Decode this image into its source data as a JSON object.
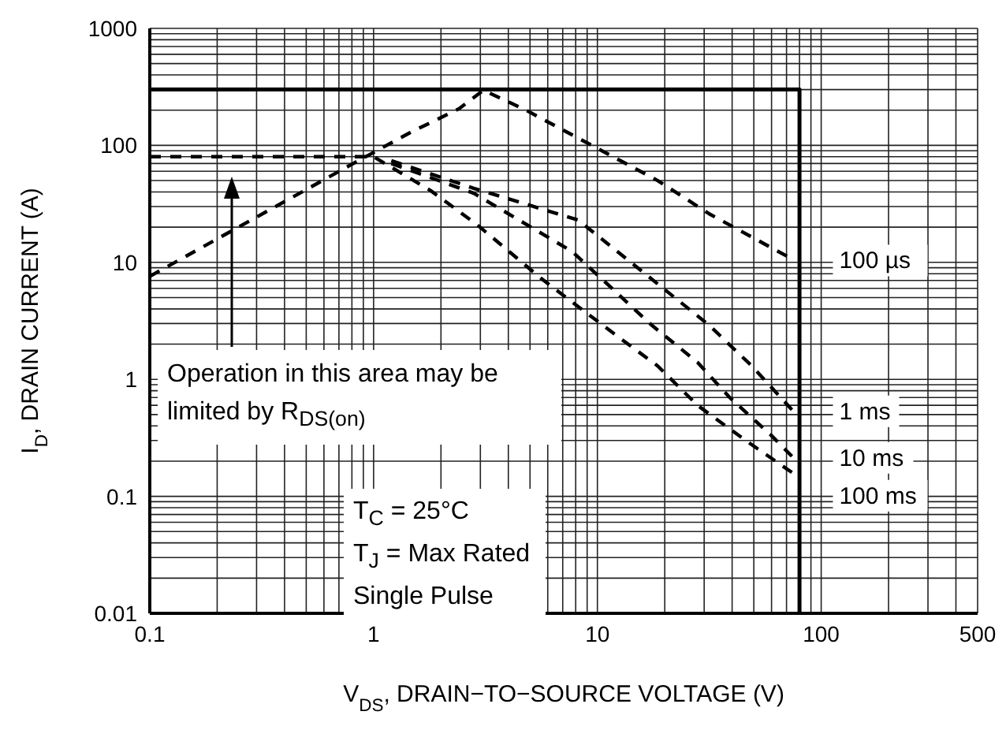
{
  "chart_data": {
    "type": "line",
    "xlabel": "V$_{DS}$, DRAIN−TO−SOURCE VOLTAGE (V)",
    "ylabel": "I$_{D}$, DRAIN CURRENT (A)",
    "log": "xy",
    "xlim": [
      0.1,
      500
    ],
    "xticks": [
      0.1,
      1,
      10,
      100,
      500
    ],
    "ylim": [
      0.01,
      1000
    ],
    "yticks": [
      0.01,
      0.1,
      1,
      10,
      100,
      1000
    ],
    "grid": true,
    "legend": false,
    "marker": "none",
    "line_style": "dashed",
    "series": [
      {
        "color": "#000000",
        "line_style": "solid",
        "x": [
          0.1,
          80,
          80
        ],
        "values": [
          300,
          300,
          0.01
        ]
      },
      {
        "name": "100 µs",
        "color": "#000000",
        "x": [
          0.1,
          0.8,
          1.45,
          2.4,
          3.1,
          4.7,
          18.6,
          31.6,
          74
        ],
        "values": [
          7.6,
          69,
          128,
          205,
          296,
          204,
          50,
          26,
          10.7
        ]
      },
      {
        "name": "1 ms",
        "color": "#000000",
        "x": [
          1.2,
          2.8,
          8.2,
          31.6,
          49,
          74
        ],
        "values": [
          74,
          43,
          23,
          2.9,
          1.3,
          0.55
        ]
      },
      {
        "name": "10 ms",
        "color": "#000000",
        "x": [
          1.2,
          2.8,
          7.7,
          17.5,
          28,
          39,
          60,
          74
        ],
        "values": [
          70,
          39,
          12.4,
          2.9,
          1.4,
          0.7,
          0.33,
          0.22
        ]
      },
      {
        "name": "100 ms",
        "color": "#000000",
        "x": [
          0.1,
          1,
          1.8,
          2.9,
          5.6,
          11.4,
          18.6,
          28,
          46,
          74
        ],
        "values": [
          80,
          80,
          41,
          21,
          7.3,
          2.6,
          1.3,
          0.6,
          0.3,
          0.16
        ]
      }
    ],
    "annotations": [
      "Operation in this area may be limited by R$_{DS(on)}$",
      "T$_{C}$ = 25°C",
      "T$_{J}$ = Max Rated",
      "Single Pulse"
    ]
  }
}
